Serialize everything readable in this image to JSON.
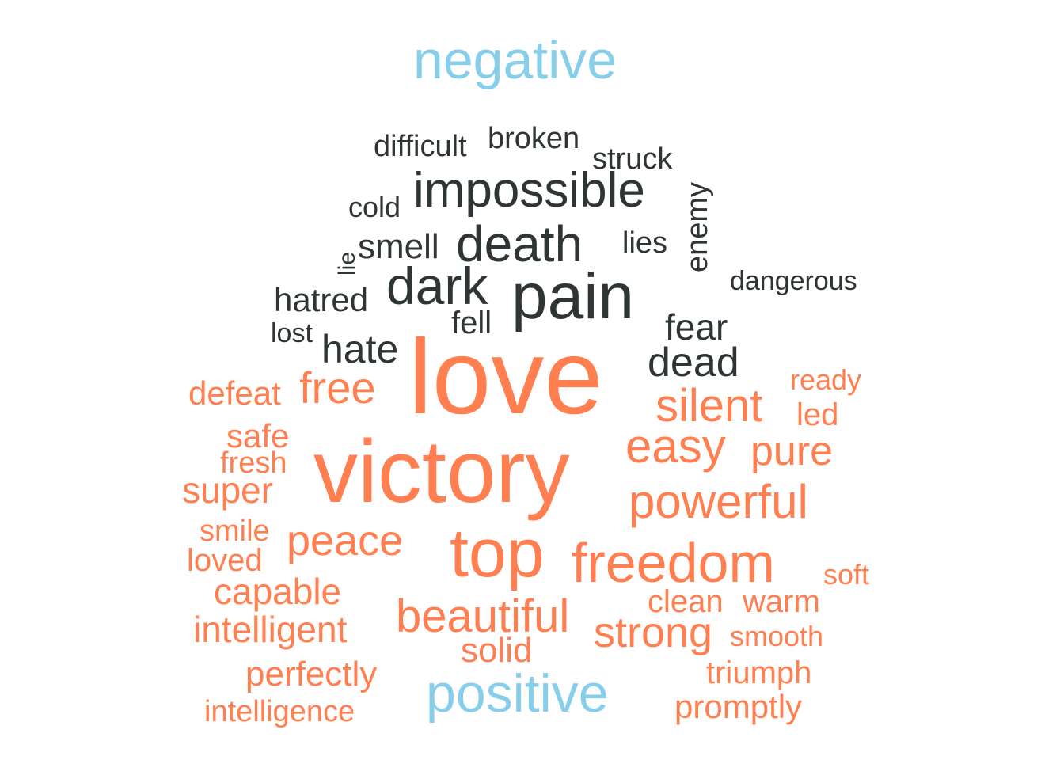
{
  "chart_data": {
    "type": "wordcloud",
    "groups": [
      {
        "name": "negative",
        "color": "#87CEEB",
        "word_color": "#2F3435"
      },
      {
        "name": "positive",
        "color": "#87CEEB",
        "word_color": "#FF7F50"
      }
    ],
    "words": [
      {
        "text": "difficult",
        "group": "negative",
        "rotated": false
      },
      {
        "text": "broken",
        "group": "negative",
        "rotated": false
      },
      {
        "text": "struck",
        "group": "negative",
        "rotated": false
      },
      {
        "text": "impossible",
        "group": "negative",
        "rotated": false
      },
      {
        "text": "cold",
        "group": "negative",
        "rotated": false
      },
      {
        "text": "enemy",
        "group": "negative",
        "rotated": true
      },
      {
        "text": "smell",
        "group": "negative",
        "rotated": false
      },
      {
        "text": "death",
        "group": "negative",
        "rotated": false
      },
      {
        "text": "lies",
        "group": "negative",
        "rotated": false
      },
      {
        "text": "lie",
        "group": "negative",
        "rotated": true
      },
      {
        "text": "dark",
        "group": "negative",
        "rotated": false
      },
      {
        "text": "pain",
        "group": "negative",
        "rotated": false
      },
      {
        "text": "dangerous",
        "group": "negative",
        "rotated": false
      },
      {
        "text": "hatred",
        "group": "negative",
        "rotated": false
      },
      {
        "text": "fell",
        "group": "negative",
        "rotated": false
      },
      {
        "text": "fear",
        "group": "negative",
        "rotated": false
      },
      {
        "text": "lost",
        "group": "negative",
        "rotated": false
      },
      {
        "text": "hate",
        "group": "negative",
        "rotated": false
      },
      {
        "text": "dead",
        "group": "negative",
        "rotated": false
      },
      {
        "text": "love",
        "group": "positive",
        "rotated": false
      },
      {
        "text": "ready",
        "group": "positive",
        "rotated": false
      },
      {
        "text": "defeat",
        "group": "positive",
        "rotated": false
      },
      {
        "text": "free",
        "group": "positive",
        "rotated": false
      },
      {
        "text": "silent",
        "group": "positive",
        "rotated": false
      },
      {
        "text": "led",
        "group": "positive",
        "rotated": false
      },
      {
        "text": "safe",
        "group": "positive",
        "rotated": false
      },
      {
        "text": "easy",
        "group": "positive",
        "rotated": false
      },
      {
        "text": "pure",
        "group": "positive",
        "rotated": false
      },
      {
        "text": "fresh",
        "group": "positive",
        "rotated": false
      },
      {
        "text": "victory",
        "group": "positive",
        "rotated": false
      },
      {
        "text": "super",
        "group": "positive",
        "rotated": false
      },
      {
        "text": "powerful",
        "group": "positive",
        "rotated": false
      },
      {
        "text": "smile",
        "group": "positive",
        "rotated": false
      },
      {
        "text": "peace",
        "group": "positive",
        "rotated": false
      },
      {
        "text": "top",
        "group": "positive",
        "rotated": false
      },
      {
        "text": "loved",
        "group": "positive",
        "rotated": false
      },
      {
        "text": "freedom",
        "group": "positive",
        "rotated": false
      },
      {
        "text": "soft",
        "group": "positive",
        "rotated": false
      },
      {
        "text": "capable",
        "group": "positive",
        "rotated": false
      },
      {
        "text": "clean",
        "group": "positive",
        "rotated": false
      },
      {
        "text": "warm",
        "group": "positive",
        "rotated": false
      },
      {
        "text": "beautiful",
        "group": "positive",
        "rotated": false
      },
      {
        "text": "intelligent",
        "group": "positive",
        "rotated": false
      },
      {
        "text": "strong",
        "group": "positive",
        "rotated": false
      },
      {
        "text": "smooth",
        "group": "positive",
        "rotated": false
      },
      {
        "text": "solid",
        "group": "positive",
        "rotated": false
      },
      {
        "text": "perfectly",
        "group": "positive",
        "rotated": false
      },
      {
        "text": "triumph",
        "group": "positive",
        "rotated": false
      },
      {
        "text": "promptly",
        "group": "positive",
        "rotated": false
      },
      {
        "text": "intelligence",
        "group": "positive",
        "rotated": false
      }
    ]
  }
}
